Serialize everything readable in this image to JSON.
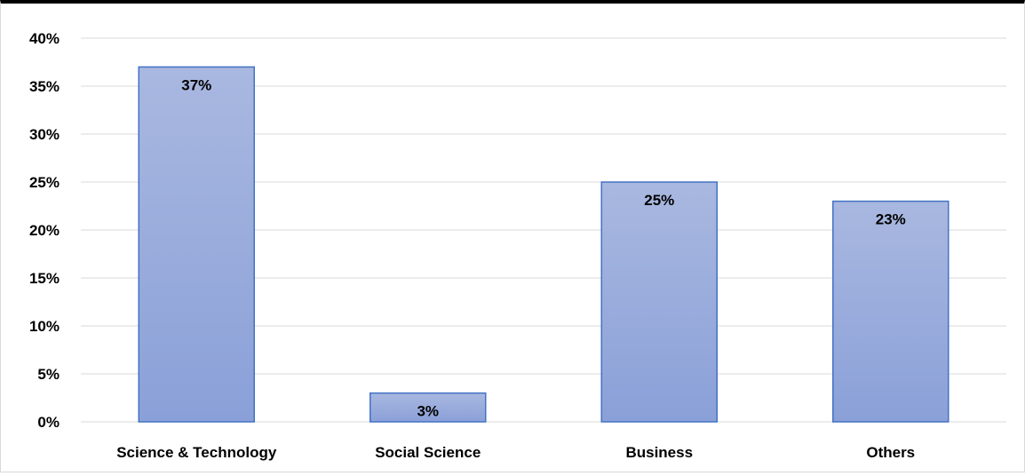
{
  "chart_data": {
    "type": "bar",
    "categories": [
      "Science & Technology",
      "Social Science",
      "Business",
      "Others"
    ],
    "values": [
      37,
      3,
      25,
      23
    ],
    "value_labels": [
      "37%",
      "3%",
      "25%",
      "23%"
    ],
    "yticks": [
      "0%",
      "5%",
      "10%",
      "15%",
      "20%",
      "25%",
      "30%",
      "35%",
      "40%"
    ],
    "ylim": [
      0,
      40
    ],
    "ytick_step": 5,
    "grid": true,
    "legend": "none",
    "title": "",
    "xlabel": "",
    "ylabel": "",
    "colors": {
      "bar_fill_top": "#a9b8e0",
      "bar_fill_bottom": "#8aa0d8",
      "bar_stroke": "#4472c4",
      "grid": "#d9d9d9"
    }
  }
}
